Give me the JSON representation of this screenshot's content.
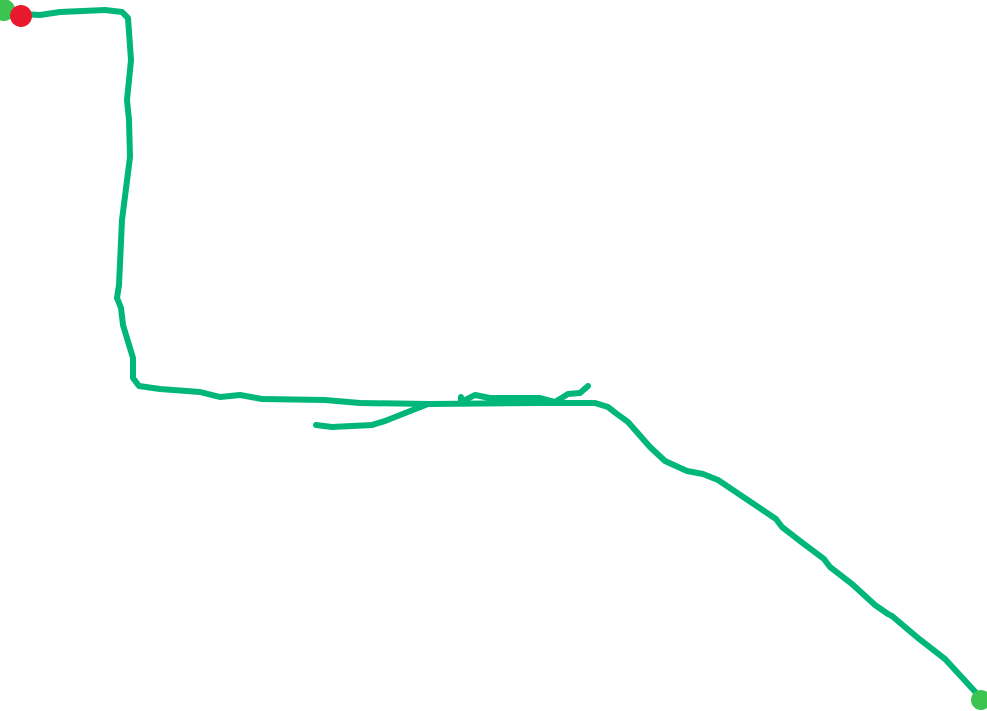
{
  "map": {
    "background_color": "#ffffff",
    "route_color": "#00b67a",
    "start_marker_color": "#e8192c",
    "end_marker_color": "#3cc451",
    "markers": [
      {
        "type": "start",
        "icon": "red-dot-marker"
      },
      {
        "type": "end",
        "icon": "green-dot-marker"
      }
    ]
  }
}
